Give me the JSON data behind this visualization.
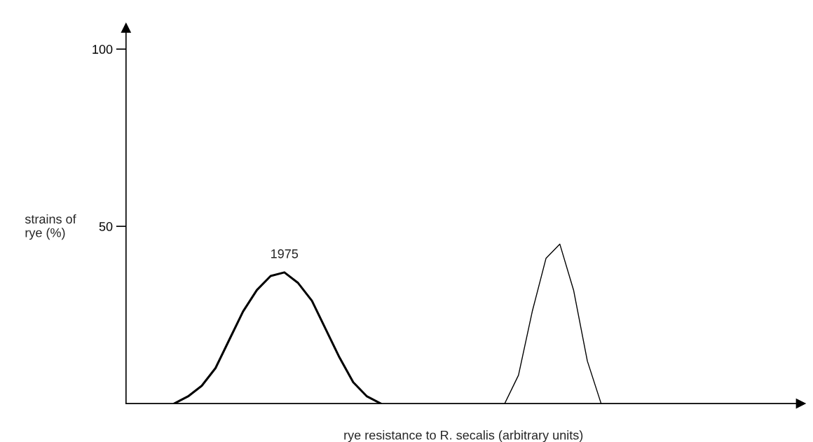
{
  "chart_data": {
    "type": "line",
    "xlabel": "rye resistance to R. secalis (arbitrary units)",
    "ylabel": "strains of\nrye (%)",
    "categories": [
      null,
      null,
      null,
      null,
      null,
      null,
      null,
      null,
      null,
      null,
      null,
      null,
      null,
      null,
      null,
      null,
      null,
      null,
      null,
      null,
      null,
      null,
      null,
      null,
      null,
      null,
      null,
      null,
      null,
      null,
      null,
      null,
      null,
      null,
      null,
      null,
      null,
      null,
      null,
      null,
      null,
      null,
      null,
      null,
      null,
      null,
      null,
      null,
      null
    ],
    "series": [
      {
        "name": "1975",
        "color": "#000000",
        "values": [
          null,
          null,
          null,
          0,
          2,
          5,
          10,
          18,
          26,
          32,
          36,
          37,
          34,
          29,
          21,
          13,
          6,
          2,
          0,
          null,
          null,
          null,
          null,
          null,
          null,
          null,
          null,
          null,
          null,
          null,
          null,
          null,
          null,
          null,
          null,
          null,
          null,
          null,
          null,
          null,
          null,
          null,
          null,
          null,
          null,
          null,
          null,
          null,
          null
        ]
      },
      {
        "color": "#000000",
        "values": [
          null,
          null,
          null,
          null,
          null,
          null,
          null,
          null,
          null,
          null,
          null,
          null,
          null,
          null,
          null,
          null,
          null,
          null,
          null,
          null,
          null,
          null,
          null,
          null,
          null,
          null,
          null,
          0,
          8,
          26,
          41,
          45,
          32,
          12,
          0,
          null,
          null,
          null,
          null,
          null,
          null,
          null,
          null,
          null,
          null,
          null,
          null,
          null,
          null
        ]
      }
    ],
    "ylim": [
      0,
      106
    ],
    "yticks": [
      50,
      100
    ],
    "grid": false,
    "legend": false,
    "line_style": "solid",
    "marker": "none"
  }
}
